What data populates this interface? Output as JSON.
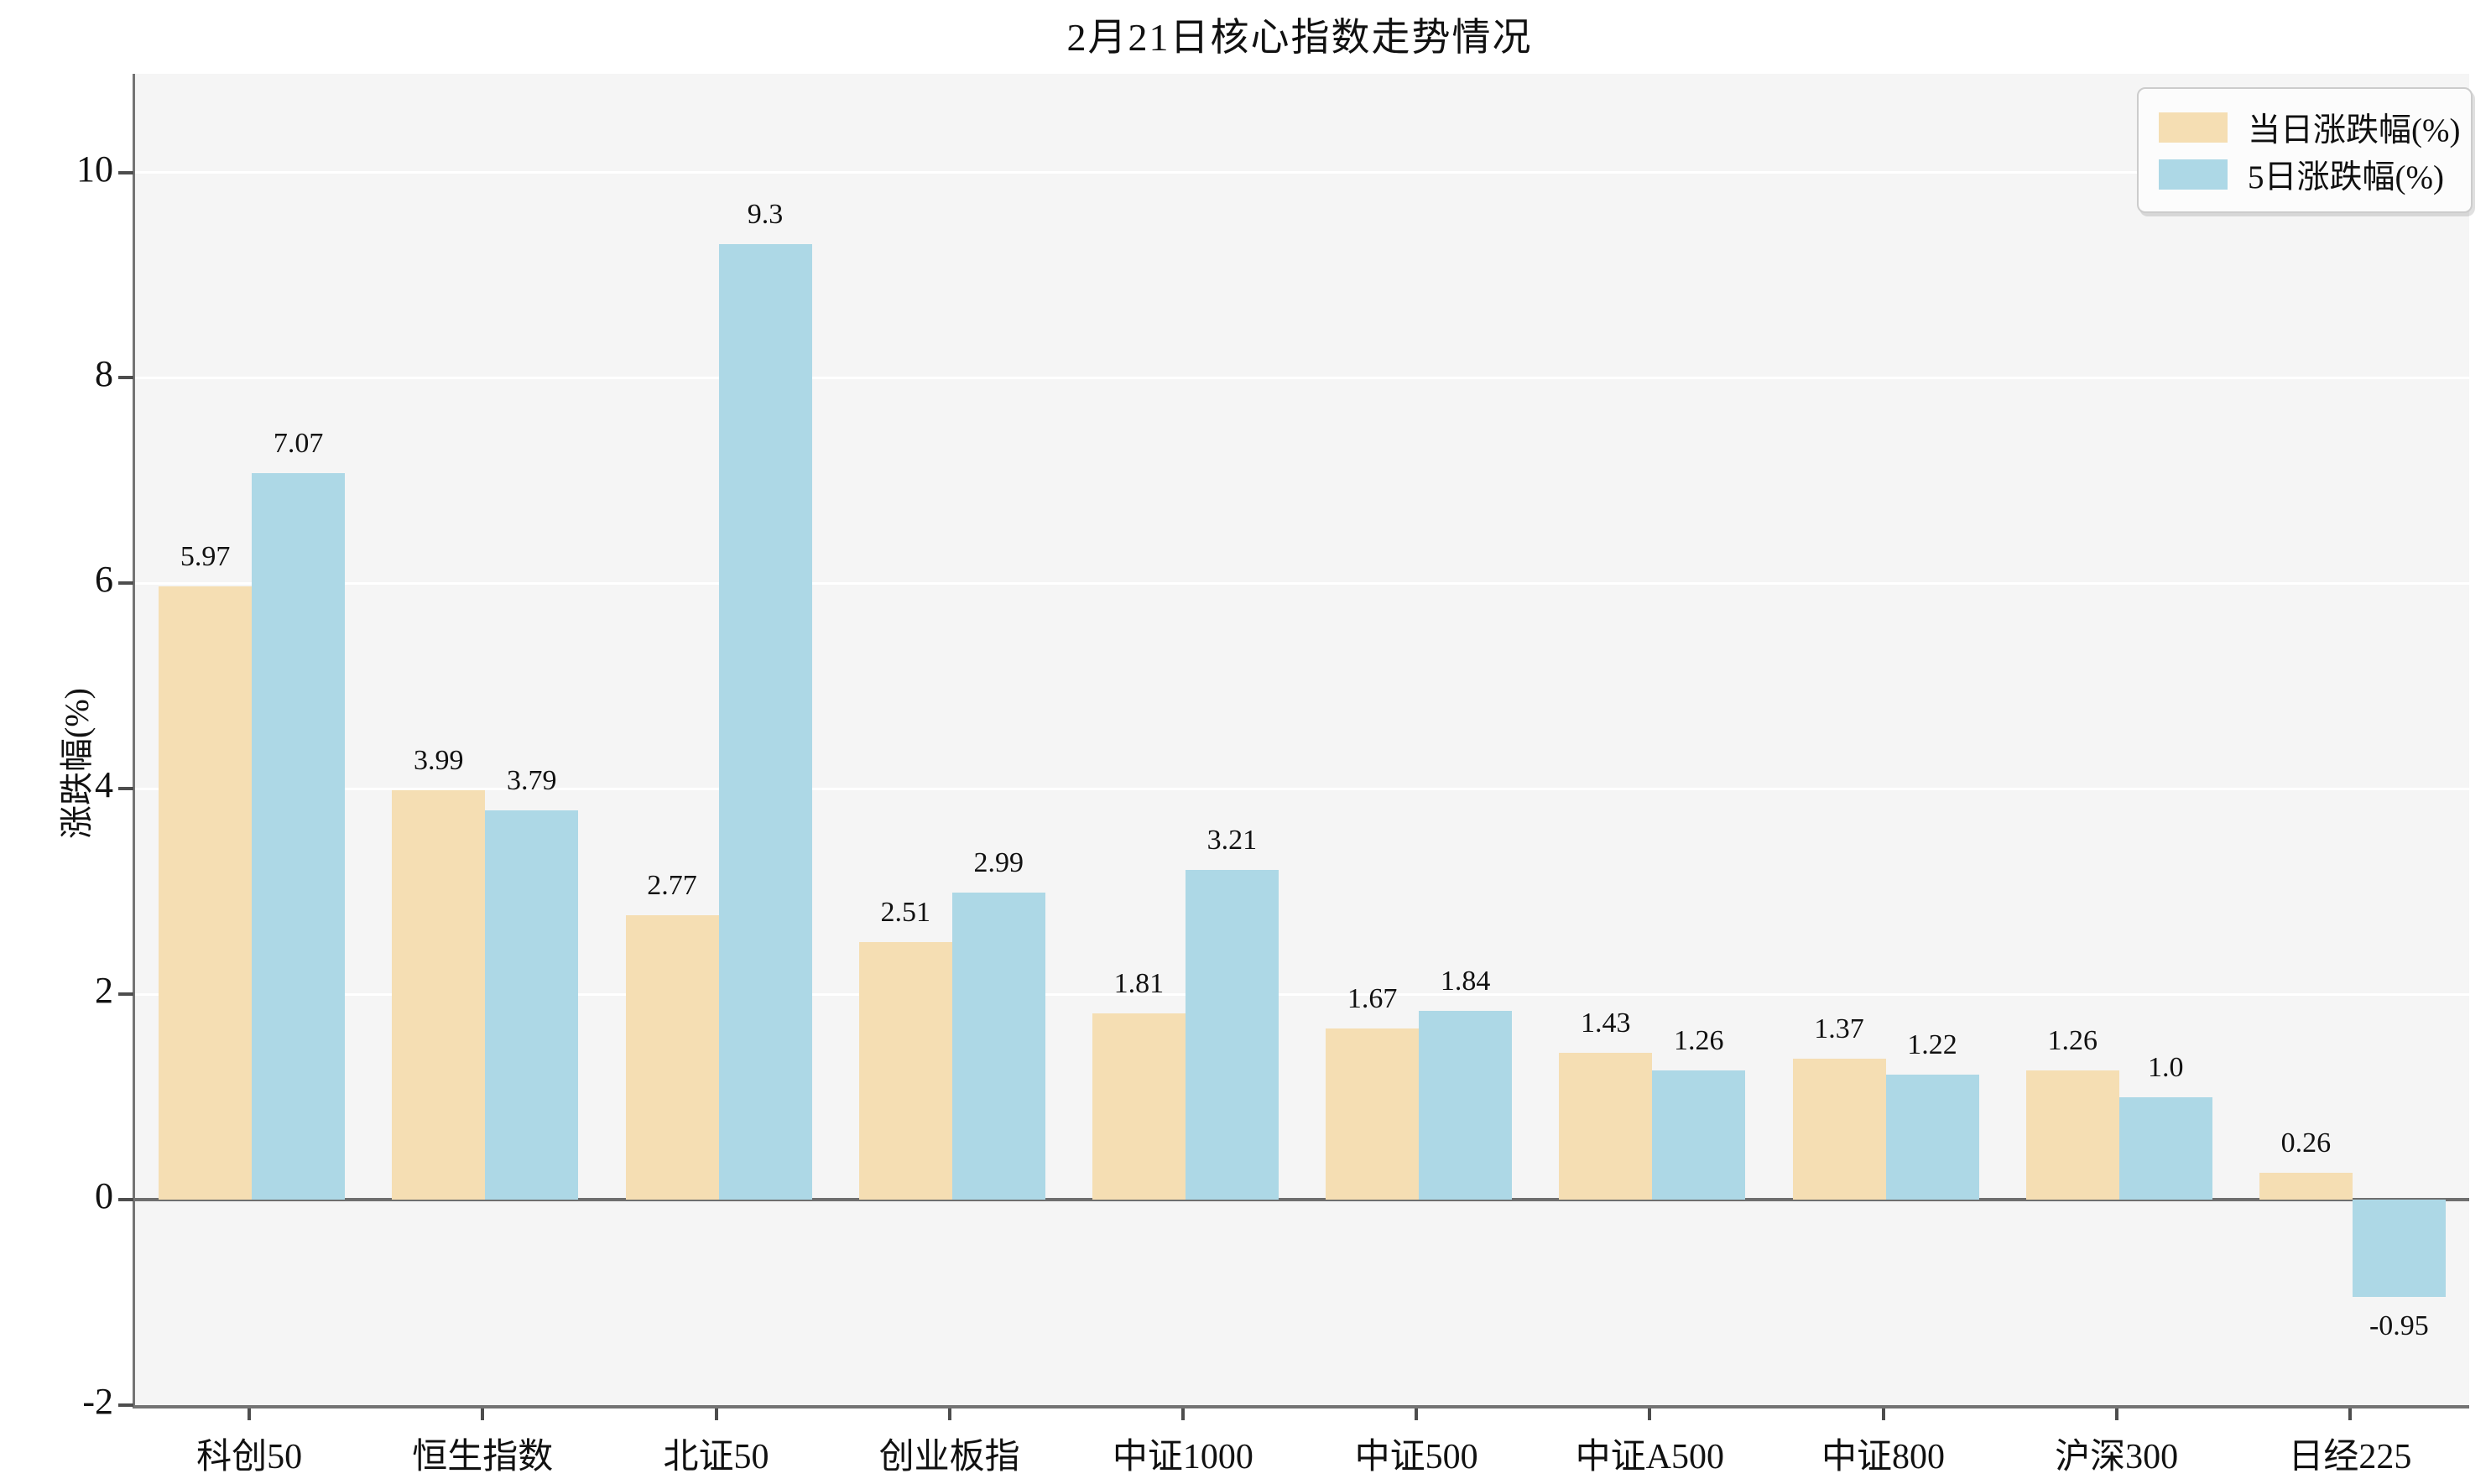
{
  "chart_data": {
    "type": "bar",
    "title": "2月21日核心指数走势情况",
    "xlabel": "",
    "ylabel": "涨跌幅(%)",
    "categories": [
      "科创50",
      "恒生指数",
      "北证50",
      "创业板指",
      "中证1000",
      "中证500",
      "中证A500",
      "中证800",
      "沪深300",
      "日经225"
    ],
    "series": [
      {
        "name": "当日涨跌幅(%)",
        "color": "#f5deb3",
        "values": [
          5.97,
          3.99,
          2.77,
          2.51,
          1.81,
          1.67,
          1.43,
          1.37,
          1.26,
          0.26
        ],
        "labels": [
          "5.97",
          "3.99",
          "2.77",
          "2.51",
          "1.81",
          "1.67",
          "1.43",
          "1.37",
          "1.26",
          "0.26"
        ]
      },
      {
        "name": "5日涨跌幅(%)",
        "color": "#add8e6",
        "values": [
          7.07,
          3.79,
          9.3,
          2.99,
          3.21,
          1.84,
          1.26,
          1.22,
          1.0,
          -0.95
        ],
        "labels": [
          "7.07",
          "3.79",
          "9.3",
          "2.99",
          "3.21",
          "1.84",
          "1.26",
          "1.22",
          "1.0",
          "-0.95"
        ]
      }
    ],
    "ylim": [
      -2,
      10.96
    ],
    "yticks": [
      -2,
      0,
      2,
      4,
      6,
      8,
      10
    ],
    "legend_position": "upper right",
    "grid": "horizontal",
    "colors": {
      "plot_background": "#f5f5f5",
      "gridline": "#ffffff",
      "spine": "#737373",
      "zero_line": "#6e6e6e",
      "text": "#111111"
    }
  }
}
